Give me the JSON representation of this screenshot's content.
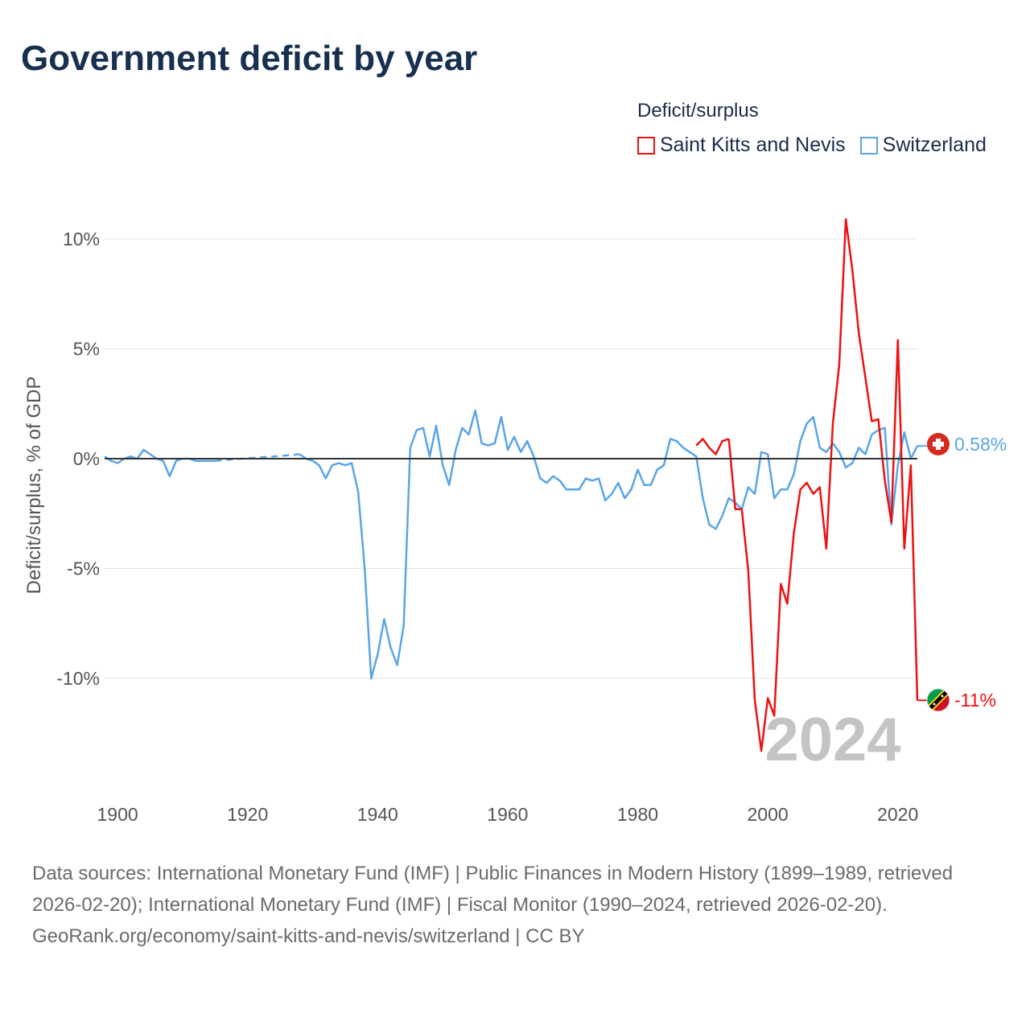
{
  "title": "Government deficit by year",
  "legend": {
    "title": "Deficit/surplus",
    "items": [
      {
        "label": "Saint Kitts and Nevis",
        "color": "#ee1111"
      },
      {
        "label": "Switzerland",
        "color": "#5aa5e6"
      }
    ]
  },
  "footer": {
    "sources": "Data sources: International Monetary Fund (IMF) | Public Finances in Modern History (1899–1989, retrieved 2026-02-20); International Monetary Fund (IMF) | Fiscal Monitor (1990–2024, retrieved 2026-02-20).",
    "attribution": "GeoRank.org/economy/saint-kitts-and-nevis/switzerland | CC BY"
  },
  "chart_data": {
    "type": "line",
    "title": "Government deficit by year",
    "xlabel": "",
    "ylabel": "Deficit/surplus, % of GDP",
    "xlim": [
      1899,
      2024
    ],
    "ylim": [
      -14,
      11
    ],
    "x_ticks": [
      1900,
      1920,
      1940,
      1960,
      1980,
      2000,
      2020
    ],
    "x_tick_labels": [
      "1900",
      "1920",
      "1940",
      "1960",
      "1980",
      "2000",
      "2020"
    ],
    "y_ticks": [
      10,
      5,
      0,
      -5,
      -10
    ],
    "y_tick_labels": [
      "10%",
      "5%",
      "0%",
      "-5%",
      "-10%"
    ],
    "grid": true,
    "year_watermark": "2024",
    "series": [
      {
        "name": "Switzerland",
        "color": "#5aa5e6",
        "end_label": "0.58%",
        "end_value": 0.58,
        "flag_icon": "switzerland-flag-icon",
        "segments": [
          {
            "style": "solid",
            "x": [
              1899,
              1900,
              1901,
              1902,
              1903,
              1904,
              1905,
              1906,
              1907,
              1908,
              1909,
              1910,
              1911,
              1912,
              1913,
              1914,
              1915,
              1916
            ],
            "y": [
              0.1,
              -0.1,
              -0.2,
              0.0,
              0.1,
              0.0,
              0.4,
              0.2,
              0.0,
              -0.1,
              -0.8,
              -0.1,
              0.0,
              0.0,
              -0.1,
              -0.1,
              -0.1,
              -0.1
            ]
          },
          {
            "style": "dashed",
            "x": [
              1916,
              1920,
              1925,
              1929
            ],
            "y": [
              -0.1,
              0.0,
              0.1,
              0.2
            ]
          },
          {
            "style": "solid",
            "x": [
              1929,
              1930,
              1931,
              1932,
              1933,
              1934,
              1935,
              1936,
              1937,
              1938,
              1939,
              1940,
              1941,
              1942,
              1943,
              1944,
              1945,
              1946,
              1947,
              1948,
              1949,
              1950,
              1951,
              1952,
              1953,
              1954,
              1955,
              1956,
              1957,
              1958,
              1959,
              1960,
              1961,
              1962,
              1963,
              1964,
              1965,
              1966,
              1967,
              1968,
              1969,
              1970,
              1971,
              1972,
              1973,
              1974,
              1975,
              1976,
              1977,
              1978,
              1979,
              1980,
              1981,
              1982,
              1983,
              1984,
              1985,
              1986,
              1987,
              1988,
              1989,
              1990,
              1991,
              1992,
              1993,
              1994,
              1995,
              1996,
              1997,
              1998,
              1999,
              2000,
              2001,
              2002,
              2003,
              2004,
              2005,
              2006,
              2007,
              2008,
              2009,
              2010,
              2011,
              2012,
              2013,
              2014,
              2015,
              2016,
              2017,
              2018,
              2019,
              2020,
              2021,
              2022,
              2023,
              2024
            ],
            "y": [
              0.2,
              0.0,
              -0.1,
              -0.3,
              -0.9,
              -0.3,
              -0.2,
              -0.3,
              -0.2,
              -1.5,
              -5.0,
              -10.0,
              -8.9,
              -7.3,
              -8.6,
              -9.4,
              -7.6,
              0.5,
              1.3,
              1.4,
              0.1,
              1.5,
              -0.3,
              -1.2,
              0.4,
              1.4,
              1.1,
              2.2,
              0.7,
              0.6,
              0.7,
              1.9,
              0.4,
              1.0,
              0.3,
              0.8,
              0.1,
              -0.9,
              -1.1,
              -0.8,
              -1.0,
              -1.4,
              -1.4,
              -1.4,
              -0.9,
              -1.0,
              -0.9,
              -1.9,
              -1.6,
              -1.1,
              -1.8,
              -1.4,
              -0.5,
              -1.2,
              -1.2,
              -0.5,
              -0.3,
              0.9,
              0.8,
              0.5,
              0.3,
              0.1,
              -1.8,
              -3.0,
              -3.2,
              -2.6,
              -1.8,
              -2.0,
              -2.3,
              -1.3,
              -1.6,
              0.3,
              0.2,
              -1.8,
              -1.4,
              -1.4,
              -0.7,
              0.8,
              1.6,
              1.9,
              0.5,
              0.3,
              0.7,
              0.3,
              -0.4,
              -0.2,
              0.5,
              0.2,
              1.1,
              1.3,
              1.4,
              -3.0,
              -0.3,
              1.2,
              0.0,
              0.58
            ]
          }
        ]
      },
      {
        "name": "Saint Kitts and Nevis",
        "color": "#ee1111",
        "end_label": "-11%",
        "end_value": -11.0,
        "flag_icon": "saint-kitts-and-nevis-flag-icon",
        "segments": [
          {
            "style": "solid",
            "x": [
              1990,
              1991,
              1992,
              1993,
              1994,
              1995
            ],
            "y": [
              0.6,
              0.9,
              0.5,
              0.2,
              0.8,
              0.9
            ]
          },
          {
            "style": "solid",
            "x": [
              1995,
              1996,
              1997,
              1998,
              1999,
              2000,
              2001,
              2002,
              2003,
              2004,
              2005,
              2006,
              2007,
              2008,
              2009,
              2010,
              2011,
              2012,
              2013,
              2014,
              2015,
              2016,
              2017,
              2018,
              2019,
              2020,
              2021,
              2022,
              2023,
              2024
            ],
            "y": [
              0.9,
              -2.3,
              -2.3,
              -5.1,
              -11.0,
              -13.3,
              -10.9,
              -11.7,
              -5.7,
              -6.6,
              -3.4,
              -1.4,
              -1.1,
              -1.6,
              -1.3,
              -4.1,
              1.6,
              4.3,
              10.9,
              8.6,
              5.7,
              3.7,
              1.7,
              1.8,
              -1.0,
              -2.9,
              5.4,
              -4.1,
              -0.3,
              -11.0
            ]
          }
        ]
      }
    ]
  }
}
